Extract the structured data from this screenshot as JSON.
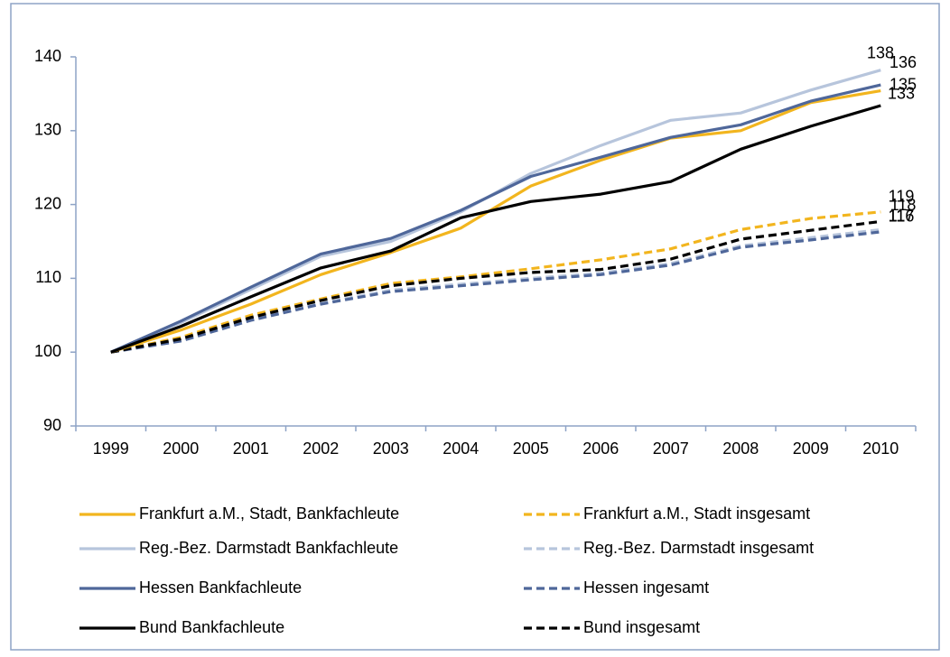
{
  "chart_data": {
    "type": "line",
    "categories": [
      "1999",
      "2000",
      "2001",
      "2002",
      "2003",
      "2004",
      "2005",
      "2006",
      "2007",
      "2008",
      "2009",
      "2010"
    ],
    "ylim": [
      90,
      140
    ],
    "yticks": [
      90,
      100,
      110,
      120,
      130,
      140
    ],
    "grid": false,
    "series": [
      {
        "name": "Frankfurt a.M., Stadt, Bankfachleute",
        "color": "#F2B51E",
        "dashed": false,
        "values": [
          100,
          103,
          106.5,
          110.5,
          113.5,
          116.8,
          122.5,
          126,
          129,
          130,
          133.8,
          135.4
        ],
        "value_labels": [
          null,
          null,
          null,
          null,
          null,
          null,
          null,
          null,
          null,
          null,
          null,
          "135"
        ]
      },
      {
        "name": "Frankfurt a.M., Stadt insgesamt",
        "color": "#F2B51E",
        "dashed": true,
        "values": [
          100,
          102,
          105,
          107.2,
          109.3,
          110.2,
          111.3,
          112.5,
          114,
          116.6,
          118.1,
          119
        ],
        "value_labels": [
          null,
          null,
          null,
          null,
          null,
          null,
          null,
          null,
          null,
          null,
          null,
          "119"
        ]
      },
      {
        "name": "Reg.-Bez. Darmstadt Bankfachleute",
        "color": "#B7C5DC",
        "dashed": false,
        "values": [
          100,
          104,
          108.5,
          113,
          115,
          119,
          124.2,
          128,
          131.4,
          132.4,
          135.5,
          138.2
        ],
        "value_labels": [
          null,
          null,
          null,
          null,
          null,
          null,
          null,
          null,
          null,
          null,
          null,
          "138"
        ]
      },
      {
        "name": "Reg.-Bez. Darmstadt insgesamt",
        "color": "#B7C5DC",
        "dashed": true,
        "values": [
          100,
          101.6,
          104.5,
          106.6,
          108.4,
          109.2,
          110,
          110.7,
          112,
          114.4,
          115.5,
          116.6
        ],
        "value_labels": [
          null,
          null,
          null,
          null,
          null,
          null,
          null,
          null,
          null,
          null,
          null,
          "117"
        ]
      },
      {
        "name": "Hessen Bankfachleute",
        "color": "#4F679A",
        "dashed": false,
        "values": [
          100,
          104.2,
          108.8,
          113.3,
          115.4,
          119.2,
          123.8,
          126.4,
          129.1,
          130.8,
          134,
          136.2
        ],
        "value_labels": [
          null,
          null,
          null,
          null,
          null,
          null,
          null,
          null,
          null,
          null,
          null,
          "136"
        ]
      },
      {
        "name": "Hessen ingesamt",
        "color": "#4F679A",
        "dashed": true,
        "values": [
          100,
          101.5,
          104.3,
          106.5,
          108.2,
          109,
          109.8,
          110.5,
          111.8,
          114.2,
          115.2,
          116.3
        ],
        "value_labels": [
          null,
          null,
          null,
          null,
          null,
          null,
          null,
          null,
          null,
          null,
          null,
          "116"
        ]
      },
      {
        "name": "Bund Bankfachleute",
        "color": "#000000",
        "dashed": false,
        "values": [
          100,
          103.5,
          107.5,
          111.4,
          113.7,
          118.2,
          120.4,
          121.4,
          123.1,
          127.5,
          130.6,
          133.4
        ],
        "value_labels": [
          null,
          null,
          null,
          null,
          null,
          null,
          null,
          null,
          null,
          null,
          null,
          "133"
        ]
      },
      {
        "name": "Bund insgesamt",
        "color": "#000000",
        "dashed": true,
        "values": [
          100,
          101.8,
          104.7,
          107,
          109,
          110,
          110.8,
          111.2,
          112.6,
          115.3,
          116.5,
          117.7
        ],
        "value_labels": [
          null,
          null,
          null,
          null,
          null,
          null,
          null,
          null,
          null,
          null,
          null,
          "118"
        ]
      }
    ]
  }
}
